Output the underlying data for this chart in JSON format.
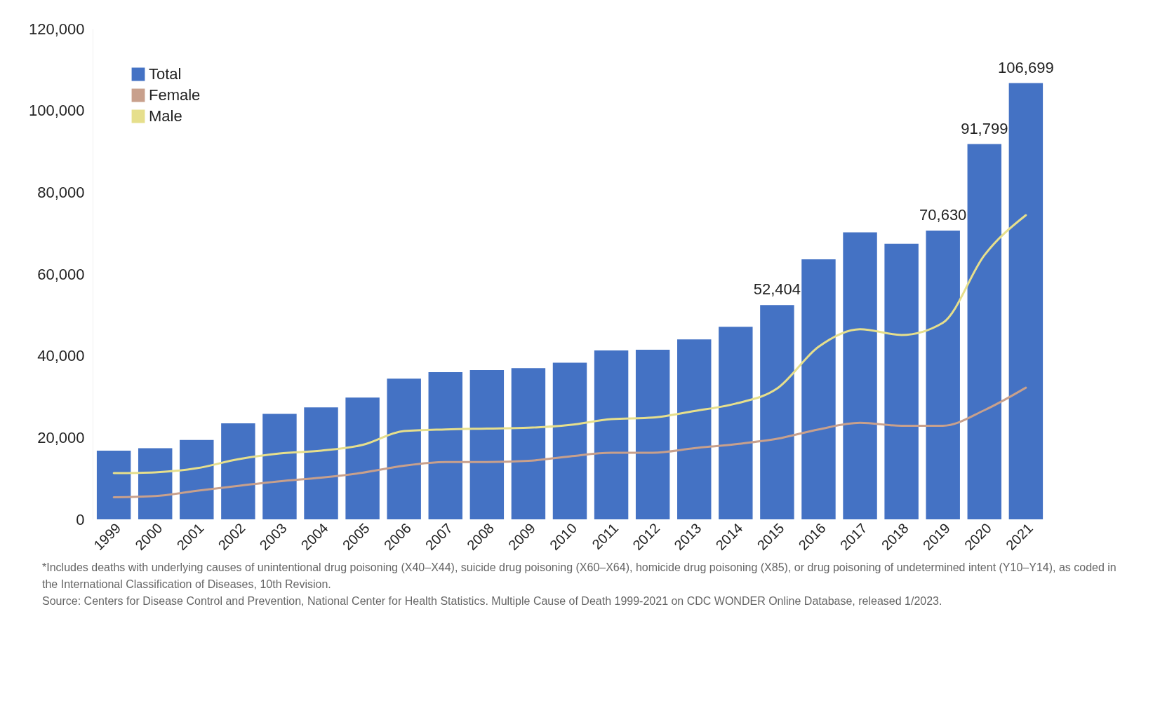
{
  "chart_data": {
    "type": "bar",
    "categories": [
      "1999",
      "2000",
      "2001",
      "2002",
      "2003",
      "2004",
      "2005",
      "2006",
      "2007",
      "2008",
      "2009",
      "2010",
      "2011",
      "2012",
      "2013",
      "2014",
      "2015",
      "2016",
      "2017",
      "2018",
      "2019",
      "2020",
      "2021"
    ],
    "series": [
      {
        "name": "Total",
        "color": "#4472c4",
        "values": [
          16800,
          17400,
          19400,
          23500,
          25800,
          27400,
          29800,
          34400,
          36000,
          36500,
          37000,
          38300,
          41300,
          41500,
          44000,
          47100,
          52404,
          63600,
          70200,
          67400,
          70630,
          91799,
          106699
        ],
        "value_labels": [
          null,
          null,
          null,
          null,
          null,
          null,
          null,
          null,
          null,
          null,
          null,
          null,
          null,
          null,
          null,
          null,
          "52,404",
          null,
          null,
          null,
          "70,630",
          "91,799",
          "106,699"
        ]
      },
      {
        "name": "Female",
        "type": "line",
        "color": "#c8a08c",
        "values": [
          5400,
          5700,
          7000,
          8200,
          9300,
          10200,
          11400,
          13100,
          14000,
          14000,
          14300,
          15400,
          16300,
          16300,
          17400,
          18400,
          19700,
          22000,
          23600,
          22900,
          22900,
          26700,
          32200
        ]
      },
      {
        "name": "Male",
        "type": "line",
        "color": "#e6df8c",
        "values": [
          11300,
          11500,
          12500,
          14700,
          16100,
          16800,
          18200,
          21600,
          22000,
          22200,
          22400,
          23100,
          24500,
          24900,
          26500,
          28300,
          32000,
          42200,
          46500,
          45100,
          48100,
          64600,
          74400
        ]
      }
    ],
    "ylim": [
      0,
      120000
    ],
    "yticks": [
      0,
      {
        "value": 20000,
        "label": "20,000"
      },
      {
        "value": 40000,
        "label": "40,000"
      },
      {
        "value": 60000,
        "label": "60,000"
      },
      {
        "value": 80000,
        "label": "80,000"
      },
      {
        "value": 100000,
        "label": "100,000"
      },
      {
        "value": 120000,
        "label": "120,000"
      }
    ],
    "grid": false,
    "legend": "top left",
    "line_style": "solid",
    "marker": "none",
    "annotations": [
      "*Includes deaths with underlying causes of unintentional drug poisoning (X40–X44), suicide drug poisoning (X60–X64), homicide drug poisoning (X85), or drug poisoning of undetermined intent (Y10–Y14), as coded in the International Classification of Diseases, 10th Revision.",
      "Source: Centers for Disease Control and Prevention, National Center for Health Statistics. Multiple Cause of Death 1999-2021 on CDC WONDER Online Database, released 1/2023."
    ]
  }
}
